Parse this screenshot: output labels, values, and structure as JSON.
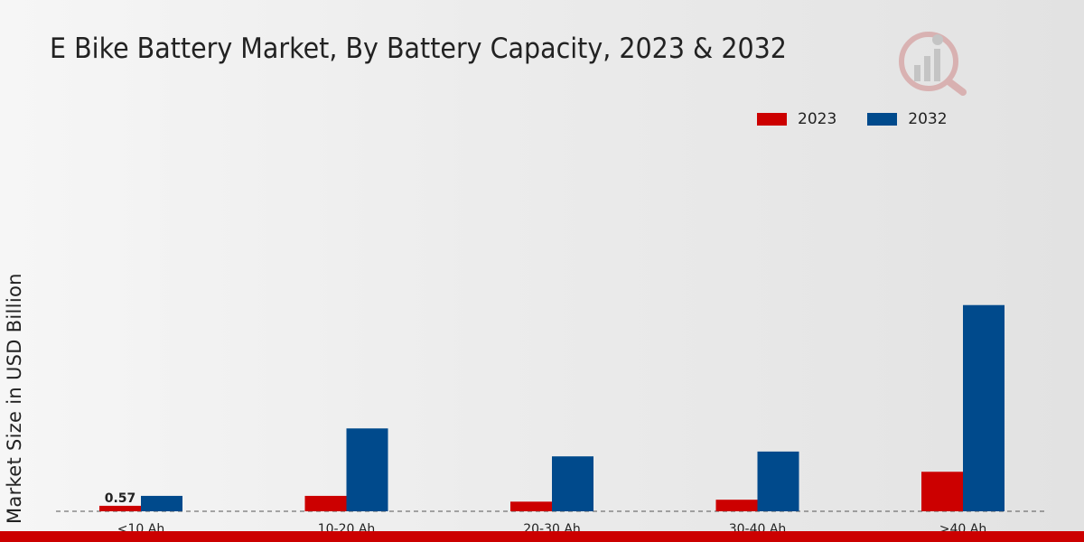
{
  "chart_data": {
    "type": "bar",
    "title": "E Bike Battery Market, By Battery Capacity, 2023 & 2032",
    "xlabel": "",
    "ylabel": "Market Size in USD Billion",
    "categories": [
      "<10 Ah",
      "10-20 Ah",
      "20-30 Ah",
      "30-40 Ah",
      ">40 Ah"
    ],
    "series": [
      {
        "name": "2023",
        "color": "#cc0000",
        "values": [
          0.57,
          1.6,
          1.0,
          1.2,
          4.1
        ]
      },
      {
        "name": "2032",
        "color": "#004a8c",
        "values": [
          1.6,
          8.6,
          5.7,
          6.2,
          21.4
        ]
      }
    ],
    "data_labels": [
      {
        "series": 0,
        "index": 0,
        "text": "0.57"
      }
    ],
    "ylim": [
      0,
      24
    ],
    "legend_position": "top-right",
    "grid": false
  }
}
